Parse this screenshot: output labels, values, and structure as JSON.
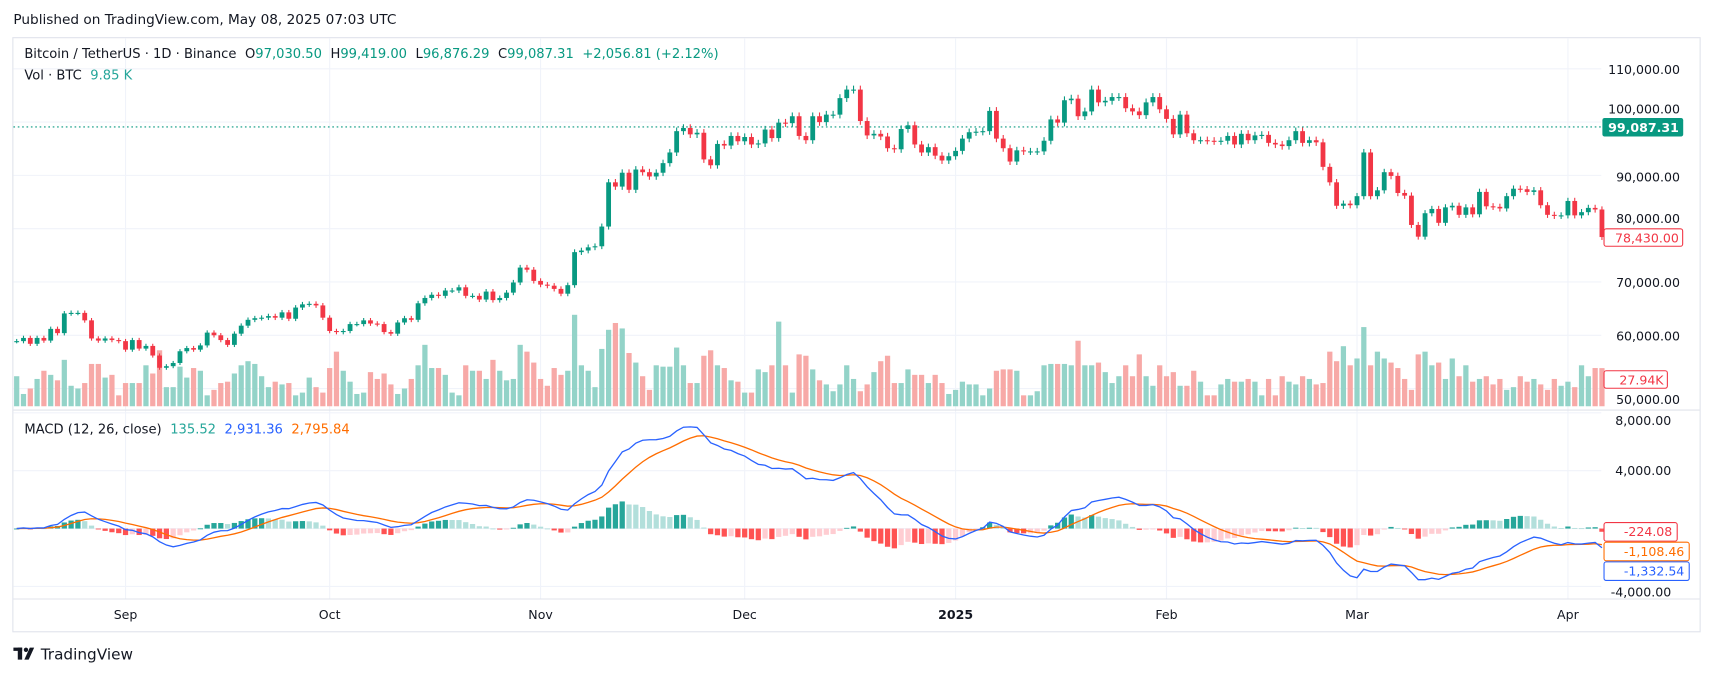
{
  "header": {
    "published": "Published on TradingView.com, May 08, 2025 07:03 UTC"
  },
  "legend": {
    "symbol": "Bitcoin / TetherUS · 1D · Binance",
    "o_label": "O",
    "o_value": "97,030.50",
    "h_label": "H",
    "h_value": "99,419.00",
    "l_label": "L",
    "l_value": "96,876.29",
    "c_label": "C",
    "c_value": "99,087.31",
    "change": "+2,056.81 (+2.12%)",
    "vol_label": "Vol · BTC",
    "vol_value": "9.85 K"
  },
  "macd_legend": {
    "title": "MACD (12, 26, close)",
    "hist": "135.52",
    "macd": "2,931.36",
    "signal": "2,795.84"
  },
  "price_axis": {
    "ticks": [
      "110,000.00",
      "100,000.00",
      "90,000.00",
      "80,000.00",
      "70,000.00",
      "60,000.00",
      "50,000.00"
    ],
    "current_price_label": "99,087.31",
    "last_close_label": "78,430.00",
    "last_volume_label": "27.94K"
  },
  "macd_axis": {
    "ticks": [
      "8,000.00",
      "4,000.00",
      "-4,000.00"
    ],
    "hist_label": "-224.08",
    "signal_label": "-1,108.46",
    "macd_label": "-1,332.54"
  },
  "time_axis": {
    "labels": [
      "Sep",
      "Oct",
      "Nov",
      "Dec",
      "2025",
      "Feb",
      "Mar",
      "Apr"
    ]
  },
  "footer": {
    "brand": "TradingView"
  },
  "colors": {
    "up": "#089981",
    "down": "#f23645",
    "macd": "#2962ff",
    "signal": "#ff6d00",
    "hist_up_strong": "#26a69a",
    "hist_up_weak": "#b2dfdb",
    "hist_down_strong": "#ff5252",
    "hist_down_weak": "#ffcdd2"
  },
  "chart_data": {
    "type": "candlestick",
    "interval": "1D",
    "first_date": "2024-08-16",
    "last_date": "2025-04-06",
    "ylim": [
      45000,
      112000
    ],
    "current_price_line": 99087.31,
    "close": [
      58900,
      59500,
      58400,
      59500,
      59000,
      61200,
      60400,
      64100,
      64200,
      64200,
      62800,
      59400,
      59000,
      59400,
      59100,
      58900,
      57300,
      59100,
      57500,
      58000,
      56200,
      53900,
      54200,
      54800,
      57000,
      57600,
      57300,
      58100,
      60500,
      60000,
      59100,
      58200,
      60300,
      61800,
      62900,
      63200,
      63300,
      63600,
      63300,
      64300,
      63100,
      65200,
      65800,
      65900,
      65600,
      63300,
      60800,
      60600,
      60800,
      62100,
      62100,
      62800,
      62200,
      62100,
      60600,
      60300,
      62400,
      63200,
      62900,
      66000,
      67000,
      67600,
      67400,
      68400,
      68400,
      69000,
      67400,
      67400,
      66700,
      68200,
      66600,
      67000,
      68000,
      69900,
      72700,
      72300,
      70200,
      69500,
      69300,
      68700,
      67800,
      69400,
      75600,
      75900,
      76500,
      76700,
      80400,
      88700,
      87900,
      90500,
      87300,
      91100,
      90600,
      89800,
      90500,
      92300,
      94300,
      98300,
      98900,
      97700,
      98000,
      93000,
      91900,
      95900,
      95600,
      97400,
      96400,
      97200,
      95800,
      96000,
      98600,
      97000,
      99900,
      99800,
      101100,
      97400,
      96600,
      101100,
      100000,
      101400,
      101400,
      104500,
      106100,
      106100,
      100200,
      97500,
      97800,
      97300,
      95100,
      94900,
      98700,
      99400,
      95800,
      94300,
      95300,
      93700,
      92800,
      93600,
      94600,
      96900,
      98100,
      98200,
      98300,
      102100,
      96900,
      95100,
      92600,
      94700,
      94500,
      94500,
      94500,
      96500,
      100500,
      99900,
      104100,
      104400,
      101100,
      102000,
      106100,
      103700,
      104000,
      104700,
      104700,
      102600,
      102000,
      101300,
      103700,
      104700,
      102400,
      100600,
      97700,
      101400,
      97900,
      96600,
      96600,
      96500,
      96400,
      96500,
      97400,
      95800,
      97800,
      96600,
      97500,
      97600,
      96100,
      95800,
      95500,
      96600,
      98300,
      96100,
      96600,
      96200,
      91600,
      88700,
      84300,
      84700,
      84400,
      86100,
      94300,
      86100,
      87200,
      90600,
      89900,
      86700,
      86200,
      80700,
      78500,
      82900,
      83700,
      81100,
      84000,
      84300,
      82600,
      84000,
      82700,
      86900,
      84200,
      84100,
      83800,
      86100,
      87500,
      87400,
      86900,
      87200,
      84400,
      82600,
      82400,
      82500,
      85200,
      82500,
      83100,
      83900,
      83600,
      78430
    ],
    "volume_k_btc": [
      22,
      9,
      13,
      20,
      26,
      23,
      19,
      34,
      15,
      13,
      17,
      31,
      31,
      21,
      23,
      8,
      17,
      17,
      17,
      30,
      24,
      41,
      14,
      14,
      29,
      21,
      28,
      26,
      8,
      12,
      17,
      18,
      24,
      30,
      33,
      31,
      22,
      14,
      18,
      16,
      17,
      8,
      10,
      21,
      14,
      10,
      28,
      40,
      26,
      18,
      9,
      10,
      25,
      20,
      24,
      16,
      9,
      13,
      20,
      30,
      45,
      28,
      28,
      23,
      10,
      8,
      30,
      26,
      26,
      20,
      34,
      26,
      19,
      20,
      45,
      40,
      32,
      20,
      15,
      28,
      23,
      26,
      67,
      30,
      26,
      14,
      42,
      56,
      61,
      57,
      39,
      32,
      22,
      12,
      30,
      29,
      29,
      43,
      30,
      17,
      17,
      37,
      41,
      30,
      28,
      19,
      18,
      10,
      10,
      27,
      25,
      30,
      62,
      30,
      10,
      38,
      37,
      27,
      19,
      16,
      11,
      16,
      30,
      20,
      11,
      16,
      25,
      33,
      37,
      17,
      17,
      27,
      23,
      23,
      17,
      23,
      17,
      9,
      12,
      18,
      16,
      16,
      8,
      13,
      26,
      27,
      27,
      26,
      8,
      8,
      11,
      30,
      31,
      31,
      31,
      30,
      48,
      30,
      30,
      32,
      25,
      17,
      22,
      30,
      22,
      38,
      22,
      15,
      30,
      22,
      25,
      15,
      15,
      26,
      18,
      8,
      8,
      16,
      20,
      18,
      18,
      20,
      18,
      8,
      20,
      8,
      22,
      18,
      16,
      22,
      20,
      16,
      17,
      40,
      33,
      44,
      30,
      35,
      58,
      30,
      40,
      35,
      32,
      28,
      20,
      12,
      38,
      40,
      30,
      32,
      20,
      35,
      22,
      30,
      18,
      20,
      22,
      16,
      20,
      12,
      14,
      22,
      18,
      20,
      16,
      12,
      20,
      15,
      18,
      14,
      30,
      22,
      28,
      27.94
    ],
    "month_starts": [
      "2024-09-01",
      "2024-10-01",
      "2024-11-01",
      "2024-12-01",
      "2025-01-01",
      "2025-02-01",
      "2025-03-01",
      "2025-04-01"
    ],
    "indicator": {
      "name": "MACD",
      "fast": 12,
      "slow": 26,
      "signal": 9,
      "source": "close",
      "ylim": [
        -5000,
        8000
      ]
    }
  }
}
